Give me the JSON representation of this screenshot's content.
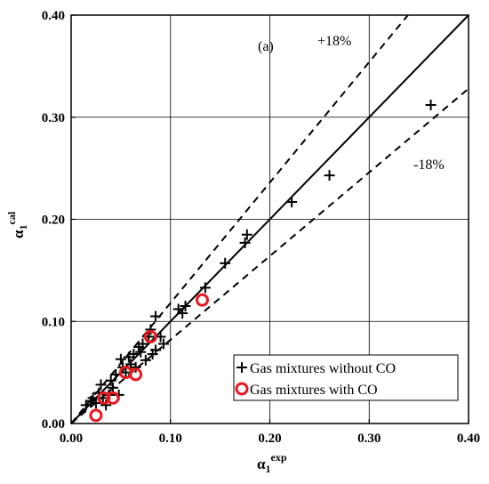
{
  "chart_data": {
    "type": "scatter",
    "xlabel": {
      "base": "α",
      "sub": "1",
      "sup": "exp"
    },
    "ylabel": {
      "base": "α",
      "sub": "1",
      "sup": "cal"
    },
    "xlim": [
      0,
      0.4
    ],
    "ylim": [
      0,
      0.4
    ],
    "xticks": [
      "0.00",
      "0.10",
      "0.20",
      "0.30",
      "0.40"
    ],
    "yticks": [
      "0.00",
      "0.10",
      "0.20",
      "0.30",
      "0.40"
    ],
    "grid": true,
    "legend_position": "bottom-right",
    "annotations": {
      "panel": "(a)",
      "upper": "+18%",
      "lower": "-18%"
    },
    "reference_lines": [
      {
        "slope": 1.0,
        "style": "solid"
      },
      {
        "slope": 1.18,
        "style": "dashed"
      },
      {
        "slope": 0.82,
        "style": "dashed"
      }
    ],
    "series": [
      {
        "name": "Gas mixtures without CO",
        "marker": "plus",
        "color": "#000000",
        "points": [
          [
            0.015,
            0.018
          ],
          [
            0.02,
            0.022
          ],
          [
            0.022,
            0.025
          ],
          [
            0.025,
            0.02
          ],
          [
            0.028,
            0.03
          ],
          [
            0.03,
            0.038
          ],
          [
            0.032,
            0.025
          ],
          [
            0.035,
            0.018
          ],
          [
            0.038,
            0.028
          ],
          [
            0.04,
            0.042
          ],
          [
            0.042,
            0.035
          ],
          [
            0.045,
            0.048
          ],
          [
            0.048,
            0.028
          ],
          [
            0.05,
            0.063
          ],
          [
            0.052,
            0.055
          ],
          [
            0.055,
            0.05
          ],
          [
            0.058,
            0.065
          ],
          [
            0.06,
            0.058
          ],
          [
            0.063,
            0.068
          ],
          [
            0.065,
            0.055
          ],
          [
            0.068,
            0.075
          ],
          [
            0.07,
            0.07
          ],
          [
            0.072,
            0.078
          ],
          [
            0.075,
            0.062
          ],
          [
            0.078,
            0.085
          ],
          [
            0.08,
            0.092
          ],
          [
            0.082,
            0.068
          ],
          [
            0.085,
            0.105
          ],
          [
            0.085,
            0.072
          ],
          [
            0.09,
            0.085
          ],
          [
            0.093,
            0.078
          ],
          [
            0.108,
            0.112
          ],
          [
            0.112,
            0.108
          ],
          [
            0.115,
            0.115
          ],
          [
            0.135,
            0.133
          ],
          [
            0.155,
            0.157
          ],
          [
            0.175,
            0.177
          ],
          [
            0.177,
            0.185
          ],
          [
            0.222,
            0.217
          ],
          [
            0.26,
            0.243
          ],
          [
            0.362,
            0.312
          ]
        ]
      },
      {
        "name": "Gas mixtures with CO",
        "marker": "open-circle",
        "color": "#e8191f",
        "points": [
          [
            0.025,
            0.008
          ],
          [
            0.033,
            0.025
          ],
          [
            0.042,
            0.025
          ],
          [
            0.055,
            0.05
          ],
          [
            0.065,
            0.048
          ],
          [
            0.08,
            0.085
          ],
          [
            0.132,
            0.121
          ]
        ]
      }
    ]
  }
}
